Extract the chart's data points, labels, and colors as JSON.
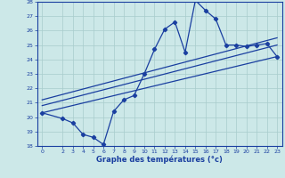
{
  "xlabel": "Graphe des températures (°c)",
  "bg_color": "#cce8e8",
  "line_color": "#1a3fa0",
  "grid_color": "#a8cccc",
  "x_data": [
    0,
    2,
    3,
    4,
    5,
    6,
    7,
    8,
    9,
    10,
    11,
    12,
    13,
    14,
    15,
    16,
    17,
    18,
    19,
    20,
    21,
    22,
    23
  ],
  "y_data": [
    20.3,
    19.9,
    19.6,
    18.8,
    18.6,
    18.1,
    20.4,
    21.2,
    21.5,
    23.0,
    24.7,
    26.1,
    26.6,
    24.5,
    28.1,
    27.4,
    26.8,
    25.0,
    25.0,
    24.9,
    25.0,
    25.1,
    24.2
  ],
  "trend1_x": [
    0,
    23
  ],
  "trend1_y": [
    20.3,
    24.2
  ],
  "trend2_x": [
    0,
    23
  ],
  "trend2_y": [
    20.8,
    25.0
  ],
  "trend3_x": [
    0,
    23
  ],
  "trend3_y": [
    21.2,
    25.5
  ],
  "ylim": [
    18,
    28
  ],
  "xlim": [
    -0.5,
    23.5
  ],
  "yticks": [
    18,
    19,
    20,
    21,
    22,
    23,
    24,
    25,
    26,
    27,
    28
  ],
  "xticks": [
    0,
    2,
    3,
    4,
    5,
    6,
    7,
    8,
    9,
    10,
    11,
    12,
    13,
    14,
    15,
    16,
    17,
    18,
    19,
    20,
    21,
    22,
    23
  ]
}
